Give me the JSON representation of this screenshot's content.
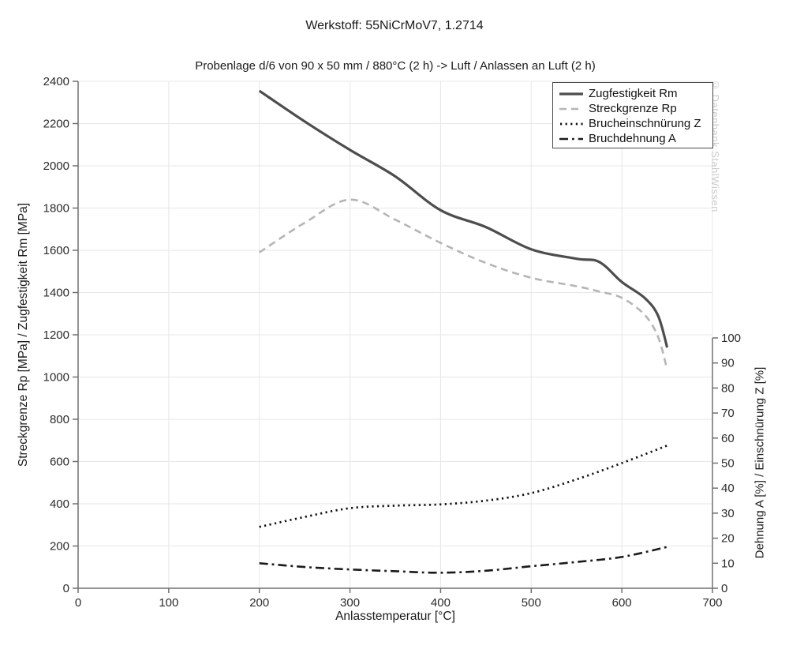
{
  "header": {
    "title": "Werkstoff: 55NiCrMoV7, 1.2714",
    "subtitle": "Probenlage d/6 von 90 x 50 mm / 880°C (2 h) -> Luft / Anlassen an Luft (2 h)"
  },
  "watermark_text": "© Datenbank StahlWissen",
  "chart_data": {
    "type": "line",
    "title": "Werkstoff: 55NiCrMoV7, 1.2714",
    "subtitle": "Probenlage d/6 von 90 x 50 mm / 880°C (2 h) -> Luft / Anlassen an Luft (2 h)",
    "xlabel": "Anlasstemperatur [°C]",
    "ylabel_left": "Streckgrenze Rp [MPa] / Zugfestigkeit Rm [MPa]",
    "ylabel_right": "Dehnung A [%] / Einschnürung Z [%]",
    "x_range": [
      0,
      700
    ],
    "x_ticks": [
      0,
      100,
      200,
      300,
      400,
      500,
      600,
      700
    ],
    "y_left_range": [
      0,
      2400
    ],
    "y_left_ticks": [
      0,
      200,
      400,
      600,
      800,
      1000,
      1200,
      1400,
      1600,
      1800,
      2000,
      2200,
      2400
    ],
    "y_right_range": [
      0,
      100
    ],
    "y_right_ticks": [
      0,
      10,
      20,
      30,
      40,
      50,
      60,
      70,
      80,
      90,
      100
    ],
    "grid": true,
    "legend_position": "top-right",
    "colors": {
      "grid": "#e7e7e7",
      "axis": "#707070",
      "text": "#2b2b2b"
    },
    "series": [
      {
        "name": "Zugfestigkeit Rm",
        "axis": "left",
        "style": "solid",
        "color": "#4d4d4d",
        "x": [
          200,
          250,
          300,
          350,
          400,
          450,
          500,
          550,
          575,
          600,
          625,
          640,
          650
        ],
        "y": [
          2355,
          2210,
          2075,
          1950,
          1790,
          1710,
          1605,
          1560,
          1545,
          1450,
          1375,
          1290,
          1140
        ]
      },
      {
        "name": "Streckgrenze Rp",
        "axis": "left",
        "style": "dashed",
        "color": "#b5b5b5",
        "x": [
          200,
          250,
          300,
          350,
          400,
          450,
          500,
          550,
          575,
          600,
          625,
          640,
          650
        ],
        "y": [
          1590,
          1730,
          1840,
          1745,
          1635,
          1540,
          1470,
          1430,
          1405,
          1375,
          1295,
          1190,
          1035
        ]
      },
      {
        "name": "Brucheinschnürung Z",
        "axis": "right",
        "style": "dotted",
        "color": "#111111",
        "x": [
          200,
          250,
          300,
          350,
          400,
          450,
          500,
          550,
          600,
          650
        ],
        "y": [
          24.5,
          28.5,
          32,
          33,
          33.5,
          35,
          38,
          43.5,
          50,
          57
        ]
      },
      {
        "name": "Bruchdehnung A",
        "axis": "right",
        "style": "dashdot",
        "color": "#1a1a1a",
        "x": [
          200,
          250,
          300,
          350,
          400,
          450,
          500,
          550,
          600,
          650
        ],
        "y": [
          10,
          8.5,
          7.5,
          6.8,
          6.2,
          7,
          8.8,
          10.5,
          12.5,
          16.5
        ]
      }
    ]
  }
}
